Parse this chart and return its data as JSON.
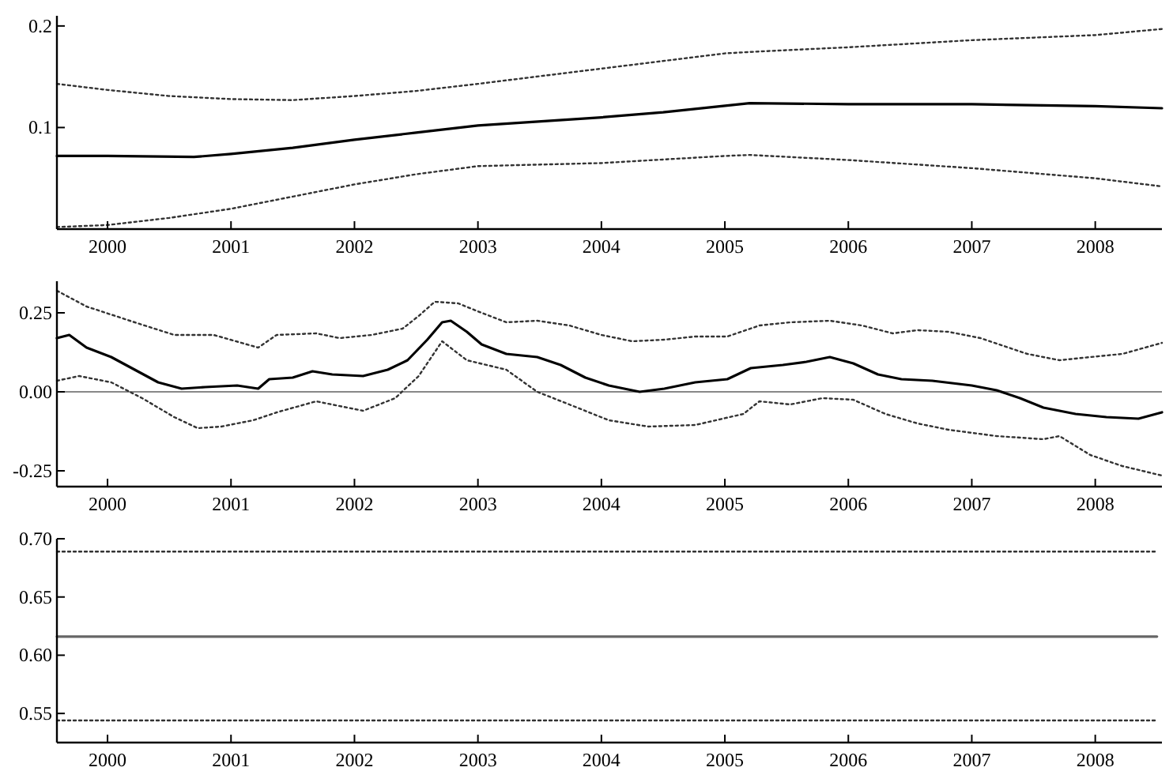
{
  "chart_data": [
    {
      "type": "line",
      "xlim": [
        1999.59,
        2008.54
      ],
      "xticks": [
        2000,
        2001,
        2002,
        2003,
        2004,
        2005,
        2006,
        2007,
        2008
      ],
      "ylim": [
        0,
        0.21
      ],
      "yticks": [
        0.1,
        0.2
      ],
      "grid": false,
      "marker": "none",
      "series": [
        {
          "color": "#333333",
          "line_style": "dotted",
          "x": [
            1999.59,
            2000.0,
            2000.5,
            2001.0,
            2001.5,
            2002.0,
            2002.5,
            2003.0,
            2004.0,
            2005.0,
            2005.3,
            2006.0,
            2007.0,
            2008.0,
            2008.54
          ],
          "values": [
            0.143,
            0.137,
            0.131,
            0.128,
            0.127,
            0.131,
            0.136,
            0.143,
            0.158,
            0.173,
            0.175,
            0.179,
            0.186,
            0.191,
            0.197
          ]
        },
        {
          "color": "#000000",
          "line_style": "solid",
          "x": [
            1999.59,
            2000.0,
            2000.7,
            2001.0,
            2001.5,
            2002.0,
            2002.5,
            2003.0,
            2004.0,
            2004.5,
            2005.2,
            2006.0,
            2007.0,
            2008.0,
            2008.54
          ],
          "values": [
            0.072,
            0.072,
            0.071,
            0.074,
            0.08,
            0.088,
            0.095,
            0.102,
            0.11,
            0.115,
            0.124,
            0.123,
            0.123,
            0.121,
            0.119
          ]
        },
        {
          "color": "#333333",
          "line_style": "dotted",
          "x": [
            1999.59,
            2000.0,
            2000.5,
            2001.0,
            2001.5,
            2002.0,
            2002.5,
            2003.0,
            2004.0,
            2005.0,
            2005.2,
            2006.0,
            2007.0,
            2008.0,
            2008.54
          ],
          "values": [
            0.002,
            0.004,
            0.011,
            0.02,
            0.032,
            0.044,
            0.054,
            0.062,
            0.065,
            0.072,
            0.073,
            0.068,
            0.06,
            0.05,
            0.042
          ]
        }
      ]
    },
    {
      "type": "line",
      "xlim": [
        1999.59,
        2008.54
      ],
      "xticks": [
        2000,
        2001,
        2002,
        2003,
        2004,
        2005,
        2006,
        2007,
        2008
      ],
      "ylim": [
        -0.3,
        0.35
      ],
      "yticks": [
        {
          "value": -0.25,
          "label": "-0.25"
        },
        {
          "value": 0,
          "label": "0.00"
        },
        {
          "value": 0.25,
          "label": "0.25"
        }
      ],
      "grid": false,
      "marker": "none",
      "ref_lines": [
        {
          "axis": "y",
          "value": 0,
          "color": "#888888"
        }
      ],
      "series": [
        {
          "color": "#333333",
          "line_style": "dotted",
          "x": [
            1999.59,
            1999.83,
            2000.22,
            2000.54,
            2000.86,
            2001.22,
            2001.37,
            2001.69,
            2001.88,
            2002.14,
            2002.39,
            2002.52,
            2002.65,
            2002.84,
            2003.03,
            2003.23,
            2003.48,
            2003.74,
            2004.0,
            2004.25,
            2004.51,
            2004.76,
            2005.02,
            2005.28,
            2005.53,
            2005.85,
            2006.11,
            2006.36,
            2006.56,
            2006.81,
            2007.07,
            2007.45,
            2007.71,
            2007.96,
            2008.22,
            2008.54
          ],
          "values": [
            0.32,
            0.27,
            0.22,
            0.18,
            0.18,
            0.14,
            0.18,
            0.185,
            0.17,
            0.18,
            0.2,
            0.24,
            0.285,
            0.28,
            0.25,
            0.22,
            0.225,
            0.21,
            0.18,
            0.16,
            0.165,
            0.175,
            0.175,
            0.21,
            0.22,
            0.225,
            0.21,
            0.185,
            0.195,
            0.19,
            0.17,
            0.12,
            0.1,
            0.11,
            0.12,
            0.155
          ]
        },
        {
          "color": "#000000",
          "line_style": "solid",
          "x": [
            1999.59,
            1999.69,
            1999.83,
            2000.03,
            2000.22,
            2000.41,
            2000.6,
            2000.79,
            2001.05,
            2001.22,
            2001.31,
            2001.5,
            2001.66,
            2001.82,
            2002.07,
            2002.27,
            2002.43,
            2002.59,
            2002.71,
            2002.78,
            2002.91,
            2003.03,
            2003.23,
            2003.48,
            2003.67,
            2003.87,
            2004.06,
            2004.31,
            2004.51,
            2004.76,
            2005.02,
            2005.21,
            2005.47,
            2005.66,
            2005.85,
            2006.04,
            2006.24,
            2006.43,
            2006.68,
            2007.0,
            2007.2,
            2007.39,
            2007.58,
            2007.84,
            2008.09,
            2008.35,
            2008.54
          ],
          "values": [
            0.17,
            0.18,
            0.14,
            0.11,
            0.07,
            0.03,
            0.01,
            0.015,
            0.02,
            0.01,
            0.04,
            0.045,
            0.065,
            0.055,
            0.05,
            0.07,
            0.1,
            0.165,
            0.22,
            0.225,
            0.19,
            0.15,
            0.12,
            0.11,
            0.085,
            0.045,
            0.02,
            0.0,
            0.01,
            0.03,
            0.04,
            0.075,
            0.085,
            0.095,
            0.11,
            0.09,
            0.055,
            0.04,
            0.035,
            0.02,
            0.005,
            -0.02,
            -0.05,
            -0.07,
            -0.08,
            -0.085,
            -0.065
          ]
        },
        {
          "color": "#333333",
          "line_style": "dotted",
          "x": [
            1999.59,
            1999.77,
            2000.03,
            2000.28,
            2000.54,
            2000.73,
            2000.92,
            2001.18,
            2001.37,
            2001.69,
            2002.07,
            2002.33,
            2002.52,
            2002.71,
            2002.91,
            2003.23,
            2003.48,
            2003.74,
            2004.06,
            2004.38,
            2004.76,
            2005.15,
            2005.28,
            2005.53,
            2005.79,
            2006.04,
            2006.3,
            2006.56,
            2006.81,
            2007.2,
            2007.58,
            2007.71,
            2007.96,
            2008.22,
            2008.54
          ],
          "values": [
            0.035,
            0.05,
            0.03,
            -0.02,
            -0.08,
            -0.115,
            -0.11,
            -0.09,
            -0.065,
            -0.03,
            -0.06,
            -0.02,
            0.05,
            0.16,
            0.1,
            0.07,
            0.0,
            -0.04,
            -0.09,
            -0.11,
            -0.105,
            -0.07,
            -0.03,
            -0.04,
            -0.02,
            -0.025,
            -0.07,
            -0.1,
            -0.12,
            -0.14,
            -0.15,
            -0.14,
            -0.2,
            -0.235,
            -0.265
          ]
        }
      ]
    },
    {
      "type": "line",
      "xlim": [
        1999.59,
        2008.54
      ],
      "xticks": [
        2000,
        2001,
        2002,
        2003,
        2004,
        2005,
        2006,
        2007,
        2008
      ],
      "ylim": [
        0.525,
        0.7
      ],
      "yticks": [
        0.55,
        {
          "value": 0.6,
          "label": "0.60"
        },
        0.65,
        {
          "value": 0.7,
          "label": "0.70"
        }
      ],
      "grid": false,
      "marker": "none",
      "series": [
        {
          "color": "#333333",
          "line_style": "dotted",
          "x": [
            1999.59,
            2008.5
          ],
          "values": [
            0.689,
            0.689
          ]
        },
        {
          "color": "#666666",
          "line_style": "solid",
          "x": [
            1999.59,
            2008.5
          ],
          "values": [
            0.616,
            0.616
          ]
        },
        {
          "color": "#333333",
          "line_style": "dotted",
          "x": [
            1999.59,
            2008.5
          ],
          "values": [
            0.544,
            0.544
          ]
        }
      ]
    }
  ]
}
